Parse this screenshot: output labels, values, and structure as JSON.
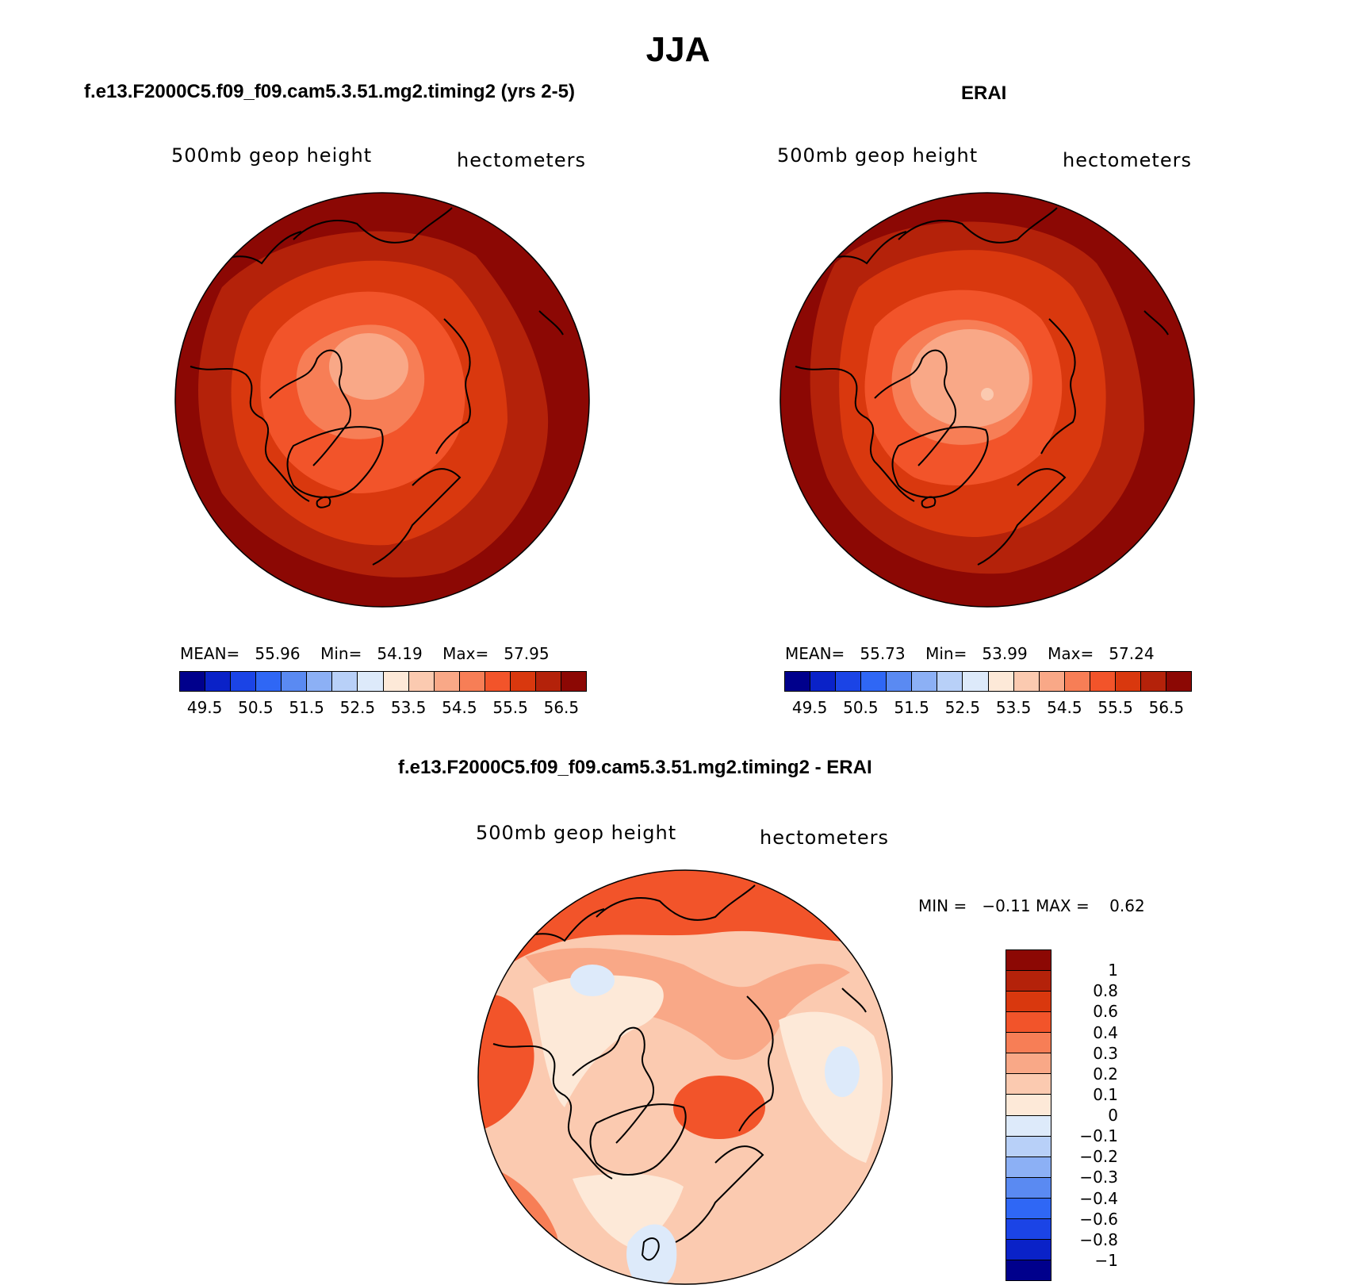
{
  "title": "JJA",
  "panels": {
    "model": {
      "subtitle": "f.e13.F2000C5.f09_f09.cam5.3.51.mg2.timing2 (yrs 2-5)",
      "var_label": "500mb  geop  height",
      "units_label": "hectometers",
      "mean_label": "MEAN=",
      "mean_value": "55.96",
      "min_label": "Min=",
      "min_value": "54.19",
      "max_label": "Max=",
      "max_value": "57.95"
    },
    "obs": {
      "subtitle": "ERAI",
      "var_label": "500mb  geop  height",
      "units_label": "hectometers",
      "mean_label": "MEAN=",
      "mean_value": "55.73",
      "min_label": "Min=",
      "min_value": "53.99",
      "max_label": "Max=",
      "max_value": "57.24"
    },
    "diff": {
      "subtitle": "f.e13.F2000C5.f09_f09.cam5.3.51.mg2.timing2 - ERAI",
      "var_label": "500mb  geop  height",
      "units_label": "hectometers",
      "min_label": "MIN =",
      "min_value": "−0.11",
      "max_label": "MAX =",
      "max_value": "0.62"
    }
  },
  "colorbar_main": {
    "colors": [
      "#00008c",
      "#0a22c8",
      "#1b44e6",
      "#2f67f5",
      "#5a8af2",
      "#8cb0f5",
      "#b8d0f8",
      "#ddeafa",
      "#fde9d8",
      "#fbcab0",
      "#f9a887",
      "#f77e56",
      "#f2542a",
      "#d9380e",
      "#b4220a",
      "#8c0804"
    ],
    "ticks": [
      "49.5",
      "50.5",
      "51.5",
      "52.5",
      "53.5",
      "54.5",
      "55.5",
      "56.5"
    ]
  },
  "colorbar_diff": {
    "colors": [
      "#8c0804",
      "#b4220a",
      "#d9380e",
      "#f2542a",
      "#f77e56",
      "#f9a887",
      "#fbcab0",
      "#fde9d8",
      "#ddeafa",
      "#b8d0f8",
      "#8cb0f5",
      "#5a8af2",
      "#2f67f5",
      "#1b44e6",
      "#0a22c8",
      "#00008c"
    ],
    "ticks": [
      "1",
      "0.8",
      "0.6",
      "0.4",
      "0.3",
      "0.2",
      "0.1",
      "0",
      "−0.1",
      "−0.2",
      "−0.3",
      "−0.4",
      "−0.6",
      "−0.8",
      "−1"
    ]
  }
}
